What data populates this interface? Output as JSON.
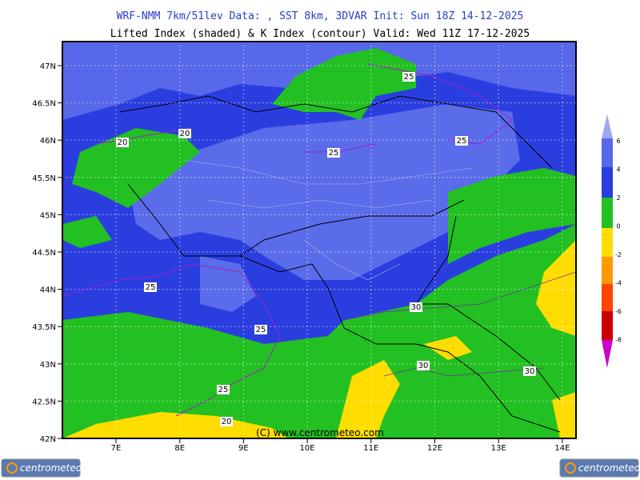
{
  "header": {
    "line1": "WRF-NMM 7km/51lev   Data: , SST 8km, 3DVAR   Init: Sun 18Z 14-12-2025",
    "line2": "Lifted Index (shaded) & K Index (contour)  Valid: Wed 11Z 17-12-2025"
  },
  "map": {
    "lat_labels": [
      "47N",
      "46.5N",
      "46N",
      "45.5N",
      "45N",
      "44.5N",
      "44N",
      "43.5N",
      "43N",
      "42.5N",
      "42N"
    ],
    "lon_labels": [
      "7E",
      "8E",
      "9E",
      "10E",
      "11E",
      "12E",
      "13E",
      "14E"
    ],
    "contour_labels": [
      "25",
      "20",
      "20",
      "25",
      "25",
      "25",
      "25",
      "30",
      "30",
      "30",
      "25",
      "20"
    ],
    "copyright": "(C) www.centrometeo.com"
  },
  "colorbar": {
    "labels": [
      "6",
      "4",
      "2",
      "0",
      "-2",
      "-4",
      "-6",
      "-8"
    ]
  },
  "logos": {
    "left": "centrometeo",
    "right": "centrometeo"
  }
}
